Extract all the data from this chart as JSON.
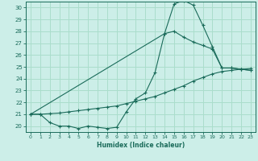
{
  "xlabel": "Humidex (Indice chaleur)",
  "bg_color": "#cceee8",
  "grid_color": "#aaddcc",
  "line_color": "#1a6b5a",
  "xlim": [
    -0.5,
    23.5
  ],
  "ylim": [
    19.5,
    30.5
  ],
  "xticks": [
    0,
    1,
    2,
    3,
    4,
    5,
    6,
    7,
    8,
    9,
    10,
    11,
    12,
    13,
    14,
    15,
    16,
    17,
    18,
    19,
    20,
    21,
    22,
    23
  ],
  "yticks": [
    20,
    21,
    22,
    23,
    24,
    25,
    26,
    27,
    28,
    29,
    30
  ],
  "series": [
    {
      "x": [
        0,
        1,
        2,
        3,
        4,
        5,
        6,
        7,
        8,
        9,
        10,
        11,
        12,
        13,
        14,
        15,
        16,
        17,
        18,
        19,
        20,
        21,
        22,
        23
      ],
      "y": [
        21.0,
        21.0,
        20.3,
        20.0,
        20.0,
        19.8,
        20.0,
        19.9,
        19.8,
        19.9,
        21.2,
        22.3,
        22.8,
        24.5,
        27.8,
        30.3,
        30.6,
        30.2,
        28.5,
        26.7,
        24.9,
        24.9,
        24.8,
        24.7
      ]
    },
    {
      "x": [
        0,
        1,
        2,
        3,
        4,
        5,
        6,
        7,
        8,
        9,
        10,
        11,
        12,
        13,
        14,
        15,
        16,
        17,
        18,
        19,
        20,
        21,
        22,
        23
      ],
      "y": [
        21.0,
        21.0,
        21.05,
        21.1,
        21.2,
        21.3,
        21.4,
        21.5,
        21.6,
        21.7,
        21.9,
        22.1,
        22.3,
        22.5,
        22.8,
        23.1,
        23.4,
        23.8,
        24.1,
        24.4,
        24.6,
        24.7,
        24.8,
        24.85
      ]
    },
    {
      "x": [
        0,
        14,
        15,
        16,
        17,
        18,
        19,
        20,
        21,
        22,
        23
      ],
      "y": [
        21.0,
        27.8,
        28.0,
        27.5,
        27.1,
        26.8,
        26.5,
        24.9,
        24.9,
        24.8,
        24.7
      ]
    }
  ]
}
